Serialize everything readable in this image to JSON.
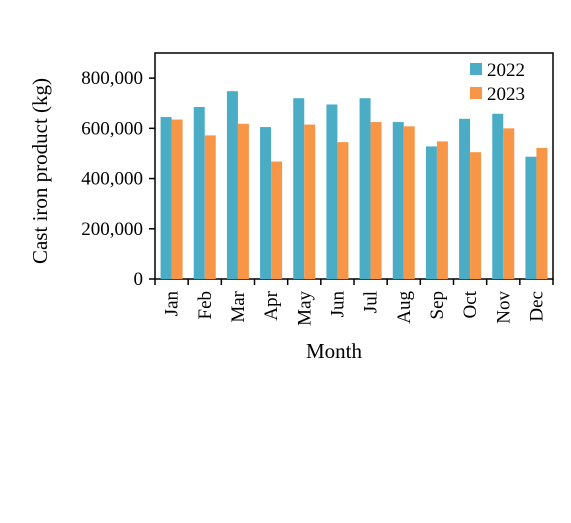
{
  "chart_data": {
    "type": "bar",
    "categories": [
      "Jan",
      "Feb",
      "Mar",
      "Apr",
      "May",
      "Jun",
      "Jul",
      "Aug",
      "Sep",
      "Oct",
      "Nov",
      "Dec"
    ],
    "series": [
      {
        "name": "2022",
        "color": "#4bacc6",
        "values": [
          645000,
          685000,
          748000,
          605000,
          720000,
          695000,
          720000,
          625000,
          528000,
          638000,
          658000,
          487000
        ]
      },
      {
        "name": "2023",
        "color": "#f79646",
        "values": [
          635000,
          572000,
          618000,
          468000,
          615000,
          545000,
          625000,
          608000,
          548000,
          505000,
          600000,
          522000
        ]
      }
    ],
    "xlabel": "Month",
    "ylabel": "Cast iron product (kg)",
    "ylim": [
      0,
      900000
    ],
    "yticks": [
      0,
      200000,
      400000,
      600000,
      800000
    ],
    "ytick_labels": [
      "0",
      "200,000",
      "400,000",
      "600,000",
      "800,000"
    ],
    "grid": false,
    "legend_position": "top-right"
  }
}
